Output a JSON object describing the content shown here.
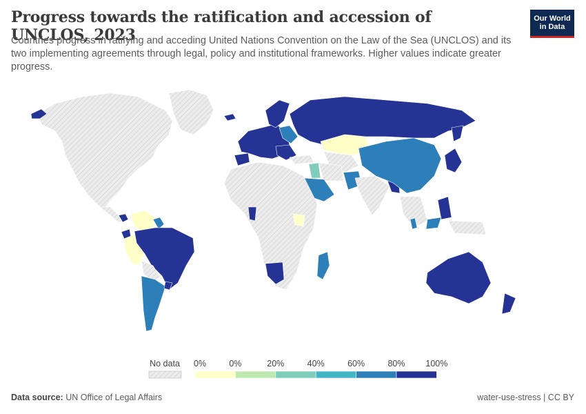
{
  "title": "Progress towards the ratification and accession of UNCLOS, 2023",
  "subtitle": "Countries progress in ratifying and acceding United Nations Convention on the Law of the Sea (UNCLOS) and its two implementing agreements through legal, policy and institutional frameworks. Higher values indicate greater progress.",
  "logo": {
    "line1": "Our World",
    "line2": "in Data"
  },
  "legend": {
    "no_data_label": "No data",
    "tick_labels": [
      "0%",
      "0%",
      "20%",
      "40%",
      "60%",
      "80%",
      "100%"
    ],
    "bin_colors": [
      "#ffffc8",
      "#bde8b0",
      "#7fcdbb",
      "#41b6c4",
      "#2c7fb8",
      "#253494"
    ]
  },
  "colors": {
    "no_data": "#ececec",
    "no_data_hatch": "#d0d0d0",
    "border": "#ffffff"
  },
  "footer": {
    "source_label": "Data source:",
    "source_text": "UN Office of Legal Affairs",
    "right_text": "water-use-stress | CC BY"
  }
}
